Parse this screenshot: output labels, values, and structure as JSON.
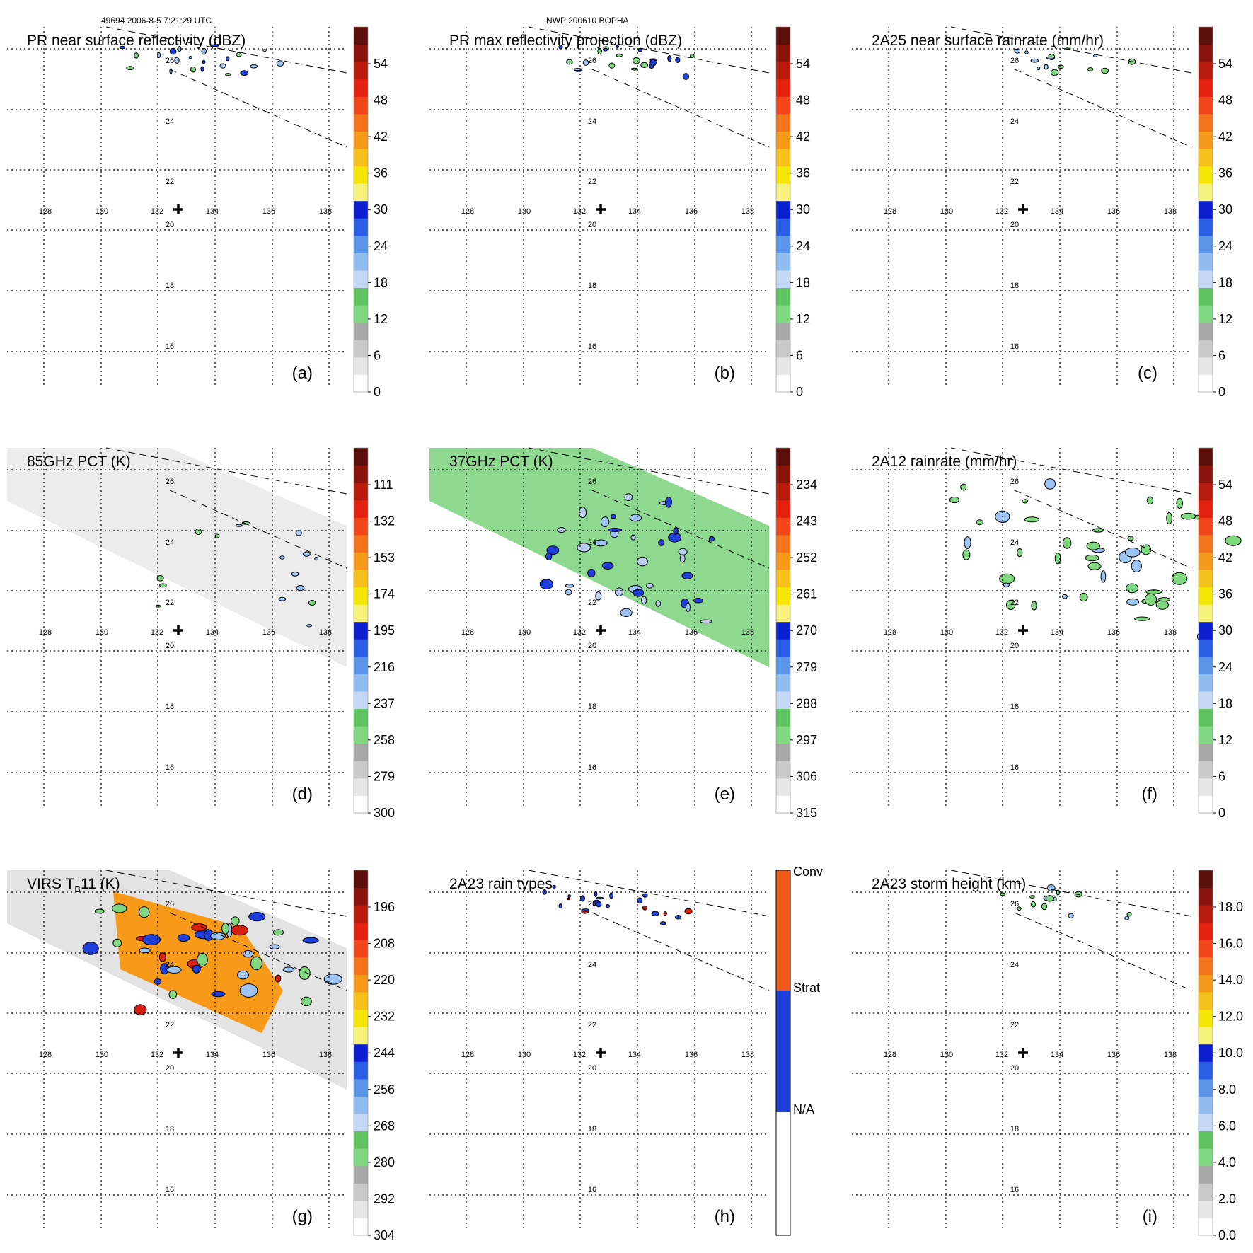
{
  "header": {
    "left": "49694 2006-8-5 7:21:29 UTC",
    "center": "NWP 200610 BOPHA"
  },
  "map": {
    "lon_labels": [
      "128",
      "130",
      "132",
      "134",
      "136",
      "138"
    ],
    "lat_labels": [
      "26",
      "24",
      "22",
      "20",
      "18",
      "16"
    ]
  },
  "panels": [
    {
      "title": "PR near surface reflectivity (dBZ)",
      "letter": "(a)",
      "colorbar": {
        "ticks": [
          "54",
          "48",
          "42",
          "36",
          "30",
          "24",
          "18",
          "12",
          "6",
          "0"
        ]
      }
    },
    {
      "title": "PR max reflectivity projection (dBZ)",
      "letter": "(b)",
      "colorbar": {
        "ticks": [
          "54",
          "48",
          "42",
          "36",
          "30",
          "24",
          "18",
          "12",
          "6",
          "0"
        ]
      }
    },
    {
      "title": "2A25 near surface rainrate (mm/hr)",
      "letter": "(c)",
      "colorbar": {
        "ticks": [
          "54",
          "48",
          "42",
          "36",
          "30",
          "24",
          "18",
          "12",
          "6",
          "0"
        ]
      }
    },
    {
      "title": "85GHz PCT (K)",
      "letter": "(d)",
      "colorbar": {
        "ticks": [
          "111",
          "132",
          "153",
          "174",
          "195",
          "216",
          "237",
          "258",
          "279",
          "300"
        ]
      }
    },
    {
      "title": "37GHz PCT (K)",
      "letter": "(e)",
      "colorbar": {
        "ticks": [
          "234",
          "243",
          "252",
          "261",
          "270",
          "279",
          "288",
          "297",
          "306",
          "315"
        ]
      }
    },
    {
      "title": "2A12 rainrate (mm/hr)",
      "letter": "(f)",
      "colorbar": {
        "ticks": [
          "54",
          "48",
          "42",
          "36",
          "30",
          "24",
          "18",
          "12",
          "6",
          "0"
        ]
      }
    },
    {
      "title": "VIRS T",
      "title_sub": "B",
      "title_end": "11 (K)",
      "letter": "(g)",
      "colorbar": {
        "ticks": [
          "196",
          "208",
          "220",
          "232",
          "244",
          "256",
          "268",
          "280",
          "292",
          "304"
        ]
      }
    },
    {
      "title": "2A23 rain types",
      "letter": "(h)",
      "colorbar": {
        "ticks": [
          "Conv",
          "Strat",
          "N/A"
        ]
      }
    },
    {
      "title": "2A23 storm height (km)",
      "letter": "(i)",
      "colorbar": {
        "ticks": [
          "18.0",
          "16.0",
          "14.0",
          "12.0",
          "10.0",
          "8.0",
          "6.0",
          "4.0",
          "2.0",
          "0.0"
        ]
      }
    }
  ],
  "colors": {
    "grey_light": "#f2f2f2",
    "green": "#7fd77f",
    "blue_light": "#9dc4f2",
    "blue": "#1f3fdc",
    "yellow": "#f5e600",
    "orange": "#f79a1a",
    "red": "#d81f0f",
    "dark_red": "#5a1008"
  }
}
